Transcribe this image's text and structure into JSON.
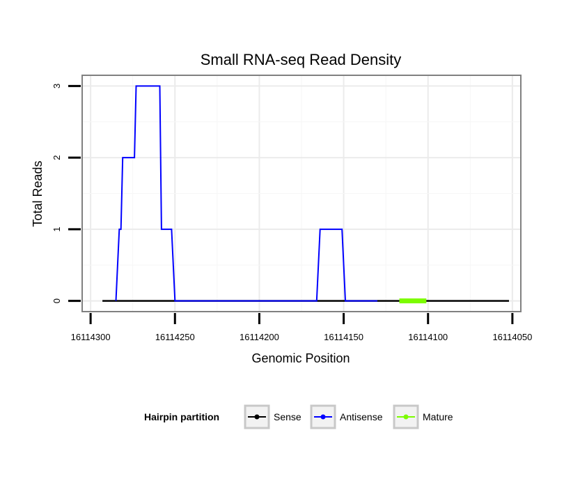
{
  "chart_data": {
    "type": "line",
    "title": "Small RNA-seq Read Density",
    "xlabel": "Genomic Position",
    "ylabel": "Total Reads",
    "xlim": [
      16114305,
      16114045
    ],
    "ylim": [
      -0.15,
      3.15
    ],
    "x_reversed": true,
    "x_ticks": [
      16114300,
      16114250,
      16114200,
      16114150,
      16114100,
      16114050
    ],
    "x_tick_labels": [
      "16114300",
      "16114250",
      "16114200",
      "16114150",
      "16114100",
      "16114050"
    ],
    "y_ticks": [
      0,
      1,
      2,
      3
    ],
    "y_tick_labels": [
      "0",
      "1",
      "2",
      "3"
    ],
    "grid": true,
    "legend_title": "Hairpin partition",
    "legend_position": "bottom",
    "series": [
      {
        "name": "Sense",
        "color": "#000000",
        "points": [
          [
            16114293,
            0
          ],
          [
            16114052,
            0
          ]
        ]
      },
      {
        "name": "Antisense",
        "color": "#0000ff",
        "points": [
          [
            16114285,
            0
          ],
          [
            16114283,
            1
          ],
          [
            16114282,
            1
          ],
          [
            16114281,
            2
          ],
          [
            16114274,
            2
          ],
          [
            16114273,
            3
          ],
          [
            16114259,
            3
          ],
          [
            16114258,
            1
          ],
          [
            16114252,
            1
          ],
          [
            16114250,
            0
          ],
          [
            16114217,
            0
          ],
          [
            16114166,
            0
          ],
          [
            16114164,
            1
          ],
          [
            16114151,
            1
          ],
          [
            16114149,
            0
          ],
          [
            16114130,
            0
          ]
        ]
      },
      {
        "name": "Mature",
        "color": "#7cfc00",
        "points": [
          [
            16114117,
            0
          ],
          [
            16114101,
            0
          ]
        ]
      }
    ]
  }
}
